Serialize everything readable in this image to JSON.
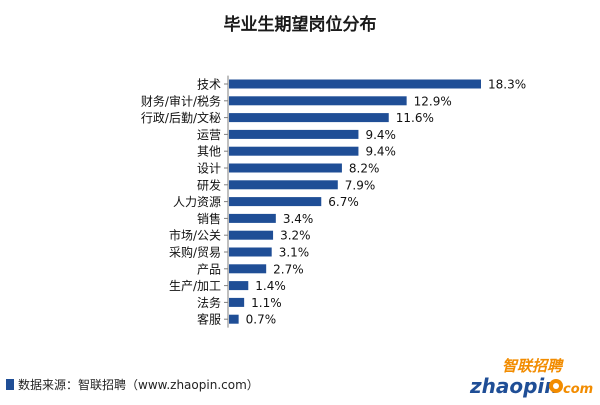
{
  "chart_data": {
    "type": "bar",
    "orientation": "horizontal",
    "title": "毕业生期望岗位分布",
    "categories": [
      "技术",
      "财务/审计/税务",
      "行政/后勤/文秘",
      "运营",
      "其他",
      "设计",
      "研发",
      "人力资源",
      "销售",
      "市场/公关",
      "采购/贸易",
      "产品",
      "生产/加工",
      "法务",
      "客服"
    ],
    "values": [
      18.3,
      12.9,
      11.6,
      9.4,
      9.4,
      8.2,
      7.9,
      6.7,
      3.4,
      3.2,
      3.1,
      2.7,
      1.4,
      1.1,
      0.7
    ],
    "value_labels": [
      "18.3%",
      "12.9%",
      "11.6%",
      "9.4%",
      "9.4%",
      "8.2%",
      "7.9%",
      "6.7%",
      "3.4%",
      "3.2%",
      "3.1%",
      "2.7%",
      "1.4%",
      "1.1%",
      "0.7%"
    ],
    "xlabel": "",
    "ylabel": "",
    "grid": false,
    "legend": "none",
    "bar_color": "#1f4e96",
    "axis_color": "#7f7f7f"
  },
  "footer": {
    "source": "数据来源：智联招聘（www.zhaopin.com）"
  },
  "logo": {
    "text_cn": "智联招聘",
    "text_en": "zhaopin.com",
    "colors": {
      "orange": "#f28c00",
      "blue": "#1f4e96"
    }
  }
}
